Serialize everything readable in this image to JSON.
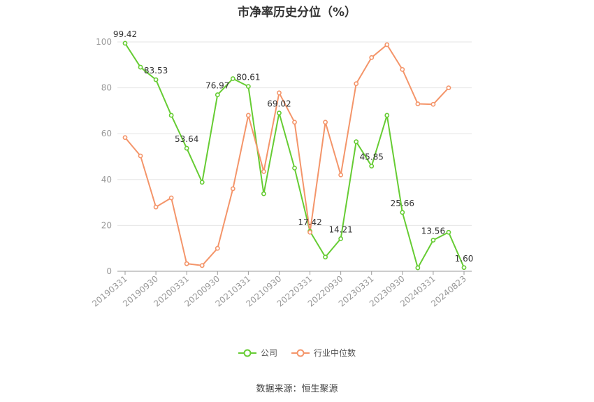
{
  "chart_data": {
    "type": "line",
    "title": "市净率历史分位（%）",
    "xlabel": "",
    "ylabel": "",
    "ylim": [
      0,
      100
    ],
    "yticks": [
      0,
      20,
      40,
      60,
      80,
      100
    ],
    "xtick_labels": [
      "20190331",
      "20190930",
      "20200331",
      "20200930",
      "20210331",
      "20210930",
      "20220331",
      "20220930",
      "20230331",
      "20230930",
      "20240331",
      "20240823"
    ],
    "legend_position": "bottom",
    "grid": true,
    "series": [
      {
        "name": "公司",
        "color": "#66cc33",
        "values": [
          99.42,
          89.0,
          83.53,
          68.0,
          53.64,
          38.8,
          76.97,
          84.0,
          80.61,
          33.8,
          69.02,
          45.0,
          17.42,
          6.2,
          14.21,
          56.5,
          45.85,
          68.0,
          25.66,
          1.5,
          13.56,
          17.0,
          1.6
        ]
      },
      {
        "name": "行业中位数",
        "color": "#f4956a",
        "values": [
          58.3,
          50.3,
          28.0,
          32.0,
          3.3,
          2.5,
          10.0,
          36.0,
          68.0,
          43.5,
          77.8,
          65.0,
          17.0,
          65.0,
          42.0,
          81.8,
          93.2,
          98.8,
          88.0,
          73.0,
          72.8,
          80.0,
          null
        ]
      }
    ],
    "data_labels": [
      {
        "series": 0,
        "index": 0,
        "text": "99.42"
      },
      {
        "series": 0,
        "index": 2,
        "text": "83.53"
      },
      {
        "series": 0,
        "index": 4,
        "text": "53.64"
      },
      {
        "series": 0,
        "index": 6,
        "text": "76.97"
      },
      {
        "series": 0,
        "index": 8,
        "text": "80.61"
      },
      {
        "series": 0,
        "index": 10,
        "text": "69.02"
      },
      {
        "series": 0,
        "index": 12,
        "text": "17.42"
      },
      {
        "series": 0,
        "index": 14,
        "text": "14.21"
      },
      {
        "series": 0,
        "index": 16,
        "text": "45.85"
      },
      {
        "series": 0,
        "index": 18,
        "text": "25.66"
      },
      {
        "series": 0,
        "index": 20,
        "text": "13.56"
      },
      {
        "series": 0,
        "index": 22,
        "text": "1.60"
      }
    ]
  },
  "legend": {
    "company_label": "公司",
    "industry_label": "行业中位数"
  },
  "source_note": "数据来源：恒生聚源"
}
